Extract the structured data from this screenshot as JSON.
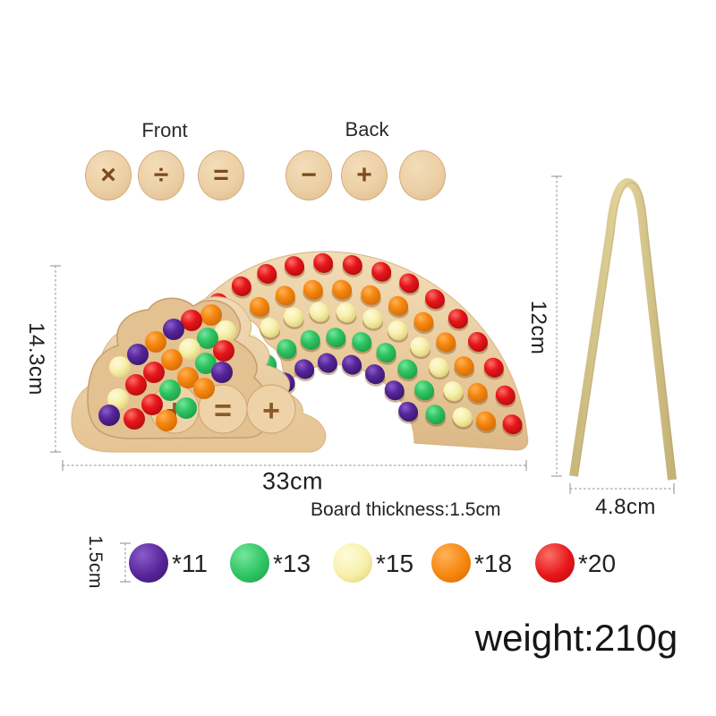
{
  "product": {
    "front_label": "Front",
    "back_label": "Back",
    "front_discs": [
      "×",
      "÷",
      "="
    ],
    "back_discs": [
      "−",
      "+",
      ""
    ],
    "cloud_discs": [
      "+",
      "=",
      "+"
    ]
  },
  "dimensions": {
    "board_height": "14.3cm",
    "board_width": "33cm",
    "board_thickness_label": "Board thickness:",
    "board_thickness_value": "1.5cm",
    "tweezers_height": "12cm",
    "tweezers_width": "4.8cm",
    "ball_size": "1.5cm"
  },
  "legend": {
    "items": [
      {
        "color_name": "purple",
        "hex": "#56259a",
        "count_label": "*11"
      },
      {
        "color_name": "green",
        "hex": "#2fc462",
        "count_label": "*13"
      },
      {
        "color_name": "yellow",
        "hex": "#f7f0ab",
        "count_label": "*15"
      },
      {
        "color_name": "orange",
        "hex": "#f6860f",
        "count_label": "*18"
      },
      {
        "color_name": "red",
        "hex": "#e8151a",
        "count_label": "*20"
      }
    ]
  },
  "weight_text": "weight:210g",
  "board": {
    "description": "rainbow wooden bead board with cloud tray",
    "rows_outer_to_inner": [
      {
        "color_name": "red",
        "hex": "#e8151a",
        "count_on_board": 14
      },
      {
        "color_name": "orange",
        "hex": "#f6860f",
        "count_on_board": 12
      },
      {
        "color_name": "yellow",
        "hex": "#f7f0ab",
        "count_on_board": 11
      },
      {
        "color_name": "green",
        "hex": "#2fc462",
        "count_on_board": 9
      },
      {
        "color_name": "purple",
        "hex": "#56259a",
        "count_on_board": 7
      }
    ],
    "pile_ball_colors": [
      "orange",
      "red",
      "yellow",
      "purple",
      "green",
      "orange",
      "yellow",
      "red",
      "purple",
      "orange",
      "green",
      "yellow",
      "red",
      "orange",
      "purple",
      "red",
      "green",
      "orange",
      "yellow",
      "red",
      "green",
      "purple",
      "red",
      "orange"
    ]
  },
  "colors": {
    "wood_light": "#f0d9b4",
    "wood_mid": "#e7c897",
    "wood_dark": "#dcb887",
    "wood_edge": "#d2ab7a",
    "engraving": "#8a5a28",
    "tweezers_wood": "#d8c88f",
    "dimension_line": "#8c8c8c",
    "text": "#1f1f1f"
  },
  "ball_palette": {
    "red": {
      "light": "#f87066",
      "base": "#e8151a",
      "dark": "#ad0d10"
    },
    "orange": {
      "light": "#ffb257",
      "base": "#f6860f",
      "dark": "#cf6a05"
    },
    "yellow": {
      "light": "#fefbda",
      "base": "#f7f0ab",
      "dark": "#ddcc74"
    },
    "green": {
      "light": "#74e69c",
      "base": "#2fc462",
      "dark": "#1d9a47"
    },
    "purple": {
      "light": "#8a5cc9",
      "base": "#56259a",
      "dark": "#371566"
    }
  }
}
